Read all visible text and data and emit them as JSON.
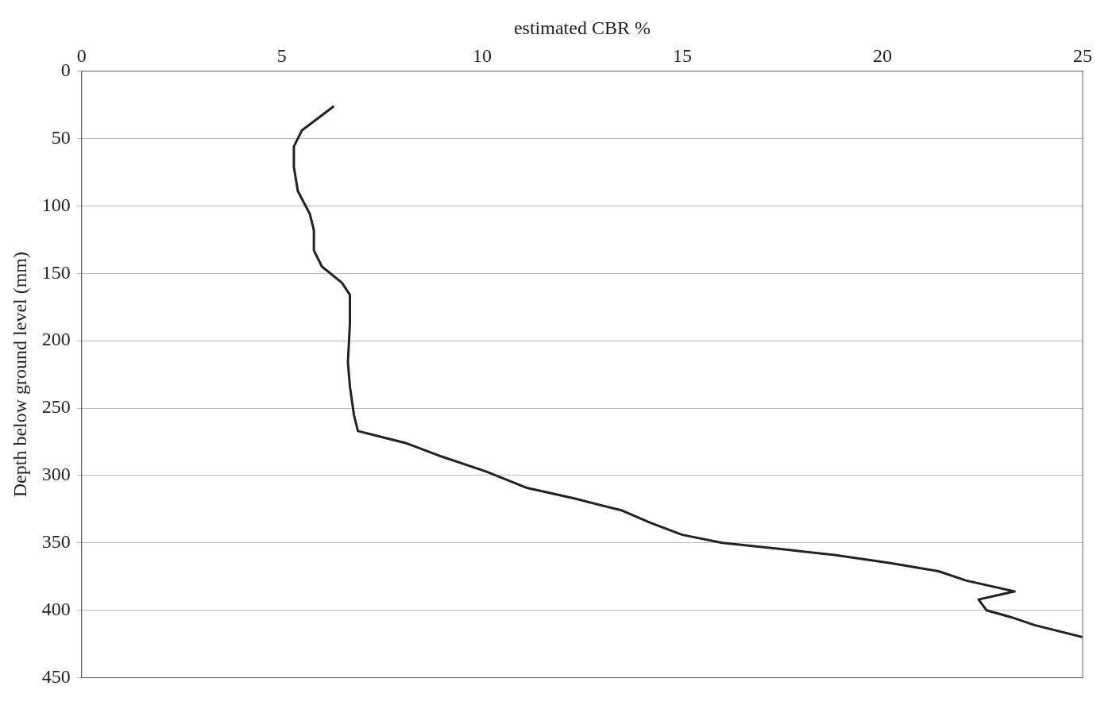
{
  "chart_data": {
    "type": "line",
    "xlabel": "estimated CBR %",
    "ylabel": "Depth below ground level (mm)",
    "xlim": [
      0,
      25
    ],
    "xticks": [
      0,
      5,
      10,
      15,
      20,
      25
    ],
    "ylim": [
      450,
      0
    ],
    "yticks": [
      0,
      50,
      100,
      150,
      200,
      250,
      300,
      350,
      400,
      450
    ],
    "grid": "y",
    "legend": false,
    "marker": "none",
    "line_style": "solid",
    "series": [
      {
        "color": "#222222",
        "x": [
          6.3,
          5.5,
          5.3,
          5.3,
          5.4,
          5.7,
          5.8,
          5.8,
          6.0,
          6.5,
          6.7,
          6.7,
          6.65,
          6.7,
          6.8,
          6.9,
          7.3,
          8.1,
          8.9,
          10.1,
          11.1,
          12.3,
          13.5,
          14.2,
          15.0,
          16.0,
          17.6,
          18.8,
          20.2,
          21.4,
          22.1,
          23.3,
          22.4,
          22.6,
          23.2,
          23.8,
          25.0
        ],
        "values": [
          26,
          44,
          56,
          71,
          89,
          106,
          118,
          133,
          145,
          157,
          166,
          187,
          216,
          234,
          255,
          267,
          270,
          276,
          285,
          297,
          309,
          317,
          326,
          335,
          344,
          350,
          355,
          359,
          365,
          371,
          378,
          386,
          392,
          400,
          405,
          411,
          420
        ]
      }
    ]
  }
}
